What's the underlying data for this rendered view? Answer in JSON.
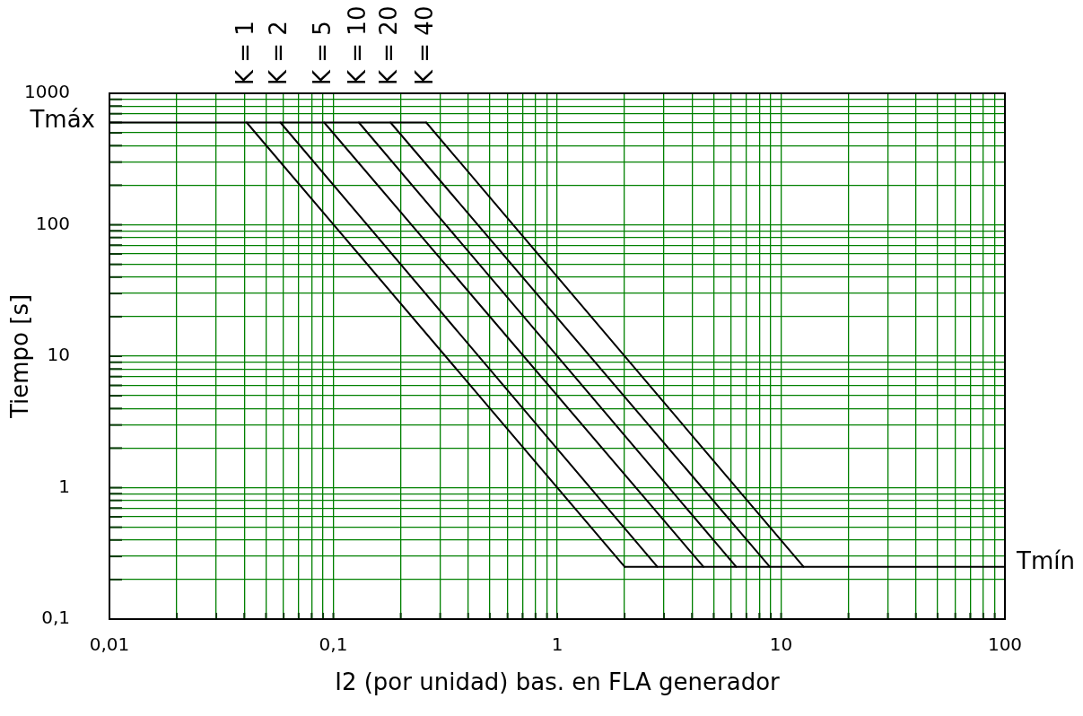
{
  "chart_data": {
    "type": "line",
    "xlabel": "I2 (por unidad) bas. en FLA generador",
    "ylabel": "Tiempo [s]",
    "log": "xy",
    "grid": true,
    "marker": "none",
    "xlim": [
      0.01,
      100
    ],
    "ylim": [
      0.1,
      1000
    ],
    "xticks": [
      {
        "value": 0.01,
        "label": "0,01"
      },
      {
        "value": 0.02,
        "label": null
      },
      {
        "value": 0.03,
        "label": null
      },
      {
        "value": 0.04,
        "label": null
      },
      {
        "value": 0.05,
        "label": null
      },
      {
        "value": 0.06,
        "label": null
      },
      {
        "value": 0.07,
        "label": null
      },
      {
        "value": 0.08,
        "label": null
      },
      {
        "value": 0.09,
        "label": null
      },
      {
        "value": 0.1,
        "label": "0,1"
      },
      {
        "value": 0.2,
        "label": null
      },
      {
        "value": 0.3,
        "label": null
      },
      {
        "value": 0.4,
        "label": null
      },
      {
        "value": 0.5,
        "label": null
      },
      {
        "value": 0.6,
        "label": null
      },
      {
        "value": 0.7,
        "label": null
      },
      {
        "value": 0.8,
        "label": null
      },
      {
        "value": 0.9,
        "label": null
      },
      1,
      {
        "value": 2,
        "label": null
      },
      {
        "value": 3,
        "label": null
      },
      {
        "value": 4,
        "label": null
      },
      {
        "value": 5,
        "label": null
      },
      {
        "value": 6,
        "label": null
      },
      {
        "value": 7,
        "label": null
      },
      {
        "value": 8,
        "label": null
      },
      {
        "value": 9,
        "label": null
      },
      10,
      {
        "value": 20,
        "label": null
      },
      {
        "value": 30,
        "label": null
      },
      {
        "value": 40,
        "label": null
      },
      {
        "value": 50,
        "label": null
      },
      {
        "value": 60,
        "label": null
      },
      {
        "value": 70,
        "label": null
      },
      {
        "value": 80,
        "label": null
      },
      {
        "value": 90,
        "label": null
      },
      100
    ],
    "yticks": [
      {
        "value": 0.1,
        "label": "0,1"
      },
      {
        "value": 0.2,
        "label": null
      },
      {
        "value": 0.3,
        "label": null
      },
      {
        "value": 0.4,
        "label": null
      },
      {
        "value": 0.5,
        "label": null
      },
      {
        "value": 0.6,
        "label": null
      },
      {
        "value": 0.7,
        "label": null
      },
      {
        "value": 0.8,
        "label": null
      },
      {
        "value": 0.9,
        "label": null
      },
      1,
      {
        "value": 2,
        "label": null
      },
      {
        "value": 3,
        "label": null
      },
      {
        "value": 4,
        "label": null
      },
      {
        "value": 5,
        "label": null
      },
      {
        "value": 6,
        "label": null
      },
      {
        "value": 7,
        "label": null
      },
      {
        "value": 8,
        "label": null
      },
      {
        "value": 9,
        "label": null
      },
      10,
      {
        "value": 20,
        "label": null
      },
      {
        "value": 30,
        "label": null
      },
      {
        "value": 40,
        "label": null
      },
      {
        "value": 50,
        "label": null
      },
      {
        "value": 60,
        "label": null
      },
      {
        "value": 70,
        "label": null
      },
      {
        "value": 80,
        "label": null
      },
      {
        "value": 90,
        "label": null
      },
      100,
      {
        "value": 200,
        "label": null
      },
      {
        "value": 300,
        "label": null
      },
      {
        "value": 400,
        "label": null
      },
      {
        "value": 500,
        "label": null
      },
      {
        "value": 600,
        "label": null
      },
      {
        "value": 700,
        "label": null
      },
      {
        "value": 800,
        "label": null
      },
      {
        "value": 900,
        "label": null
      },
      1000
    ],
    "series": [
      {
        "name": "Tmáx",
        "color": "#000000",
        "x": [
          0.01,
          0.26
        ],
        "values": [
          600,
          600
        ]
      },
      {
        "name": "K = 1",
        "color": "#000000",
        "x": [
          0.041,
          2
        ],
        "values": [
          600,
          0.25
        ]
      },
      {
        "name": "K = 2",
        "color": "#000000",
        "x": [
          0.058,
          2.8
        ],
        "values": [
          600,
          0.25
        ]
      },
      {
        "name": "K = 5",
        "color": "#000000",
        "x": [
          0.091,
          4.5
        ],
        "values": [
          600,
          0.25
        ]
      },
      {
        "name": "K = 10",
        "color": "#000000",
        "x": [
          0.13,
          6.3
        ],
        "values": [
          600,
          0.25
        ]
      },
      {
        "name": "K = 20",
        "color": "#000000",
        "x": [
          0.18,
          8.9
        ],
        "values": [
          600,
          0.25
        ]
      },
      {
        "name": "K = 40",
        "color": "#000000",
        "x": [
          0.26,
          12.6
        ],
        "values": [
          600,
          0.25
        ]
      },
      {
        "name": "Tmín",
        "color": "#000000",
        "x": [
          2,
          100
        ],
        "values": [
          0.25,
          0.25
        ]
      }
    ]
  }
}
